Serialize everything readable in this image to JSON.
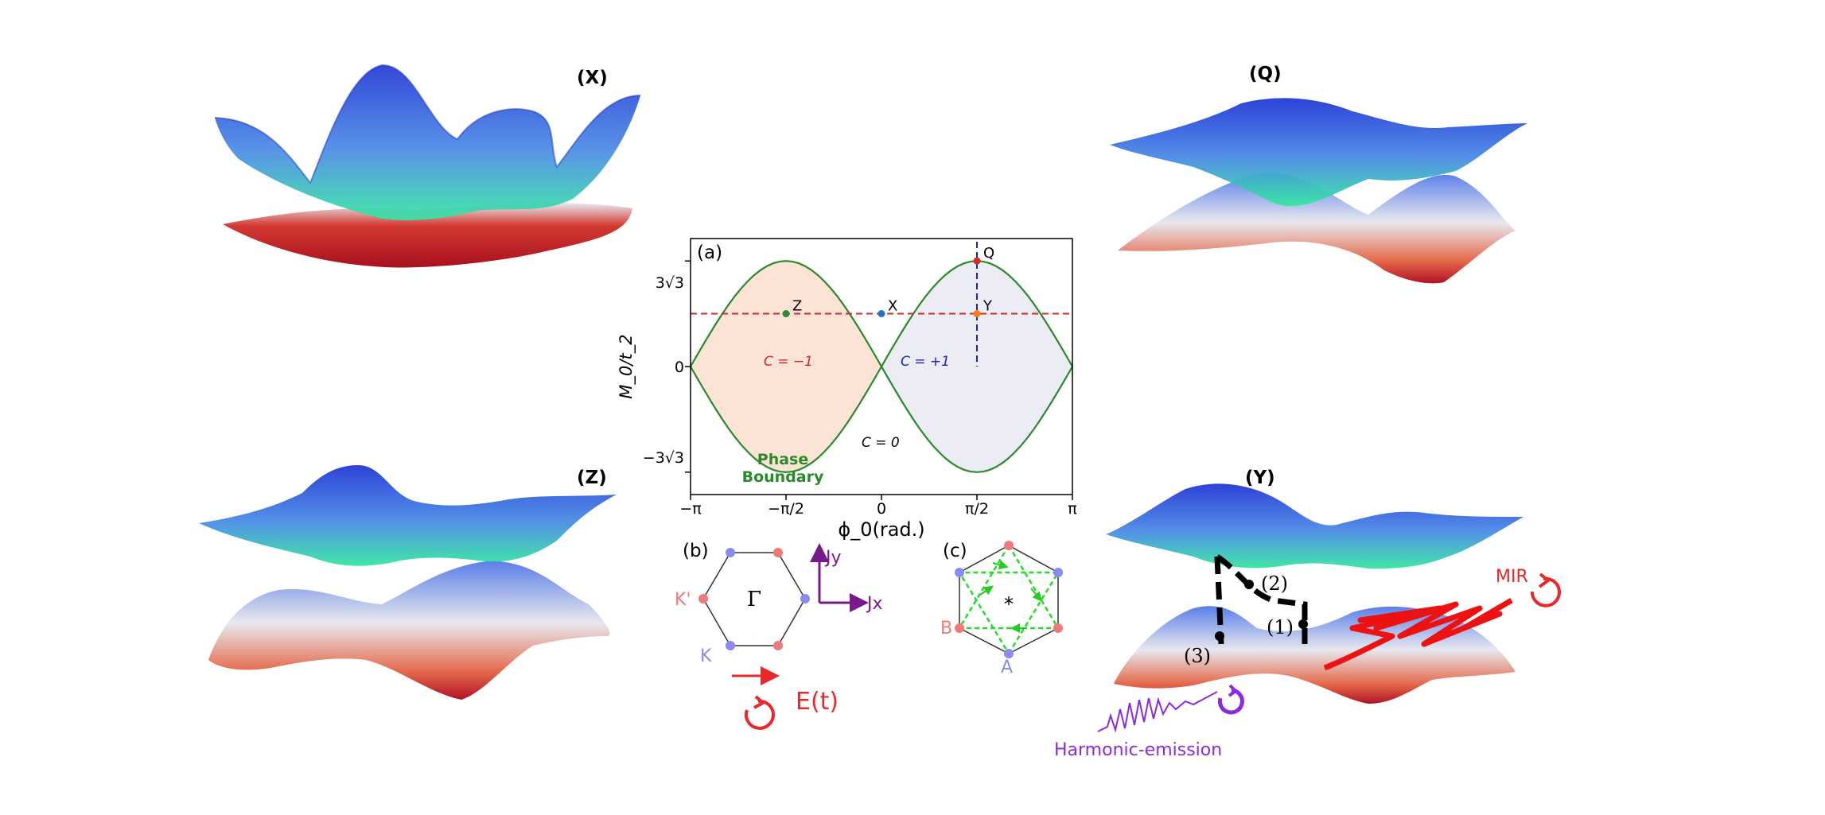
{
  "panels": {
    "X": {
      "label": "(X)"
    },
    "Q": {
      "label": "(Q)"
    },
    "Z": {
      "label": "(Z)"
    },
    "Y": {
      "label": "(Y)"
    }
  },
  "plot_a": {
    "panel_label": "(a)",
    "ylabel": "M_0/t_2",
    "xlabel": "ϕ_0(rad.)",
    "xticks": [
      "−π",
      "−π/2",
      "0",
      "π/2",
      "π"
    ],
    "yticks": [
      "3√3",
      "0",
      "−3√3"
    ],
    "regions": {
      "c_minus": "C = −1",
      "c_plus": "C = +1",
      "c_zero": "C = 0"
    },
    "phase_boundary": [
      "Phase",
      "Boundary"
    ],
    "points": [
      "Z",
      "X",
      "Y",
      "Q"
    ]
  },
  "chart_data": {
    "type": "line",
    "xlabel": "ϕ0 (rad.)",
    "ylabel": "M0/t2",
    "xlim": [
      -3.1416,
      3.1416
    ],
    "ylim": [
      -6.3,
      6.3
    ],
    "series": [
      {
        "values_formula": "M0/t2 = +3√3 |sin ϕ0|",
        "x": [
          -3.1416,
          -1.5708,
          0,
          1.5708,
          3.1416
        ],
        "y": [
          0,
          5.196,
          0,
          5.196,
          0
        ]
      },
      {
        "values_formula": "M0/t2 = −3√3 |sin ϕ0|",
        "x": [
          -3.1416,
          -1.5708,
          0,
          1.5708,
          3.1416
        ],
        "y": [
          0,
          -5.196,
          0,
          -5.196,
          0
        ]
      }
    ],
    "points": [
      {
        "label": "Z",
        "x": -1.5708,
        "y": 2.6,
        "color": "#2e8b3a"
      },
      {
        "label": "X",
        "x": 0.0,
        "y": 2.6,
        "color": "#1f77b4"
      },
      {
        "label": "Y",
        "x": 1.5708,
        "y": 2.6,
        "color": "#ff7f0e"
      },
      {
        "label": "Q",
        "x": 1.5708,
        "y": 5.196,
        "color": "#d62728"
      }
    ],
    "hline_y": 2.6,
    "vline_x": 1.5708,
    "shaded": [
      {
        "region": "C = −1",
        "x_range": [
          -3.1416,
          0
        ],
        "color": "#fbe3d6"
      },
      {
        "region": "C = +1",
        "x_range": [
          0,
          3.1416
        ],
        "color": "#ececf4"
      }
    ]
  },
  "panel_b": {
    "label": "(b)",
    "center": "Γ",
    "k_prime": "K'",
    "k": "K",
    "jy": "Jy",
    "jx": "Jx",
    "field": "E(t)"
  },
  "panel_c": {
    "label": "(c)",
    "b": "B",
    "a": "A",
    "center": "*"
  },
  "panel_y_annotations": {
    "step1": "(1)",
    "step2": "(2)",
    "step3": "(3)",
    "mir": "MIR",
    "harmonic": "Harmonic-emission"
  },
  "colors": {
    "boundary": "#2a8a2a",
    "red_dash": "#d62728",
    "blue_dash": "#1f1fbf",
    "pink": "#f07a7a",
    "lilac": "#8a8af0",
    "purple": "#8a2be2",
    "green_dash": "#22dd22"
  }
}
